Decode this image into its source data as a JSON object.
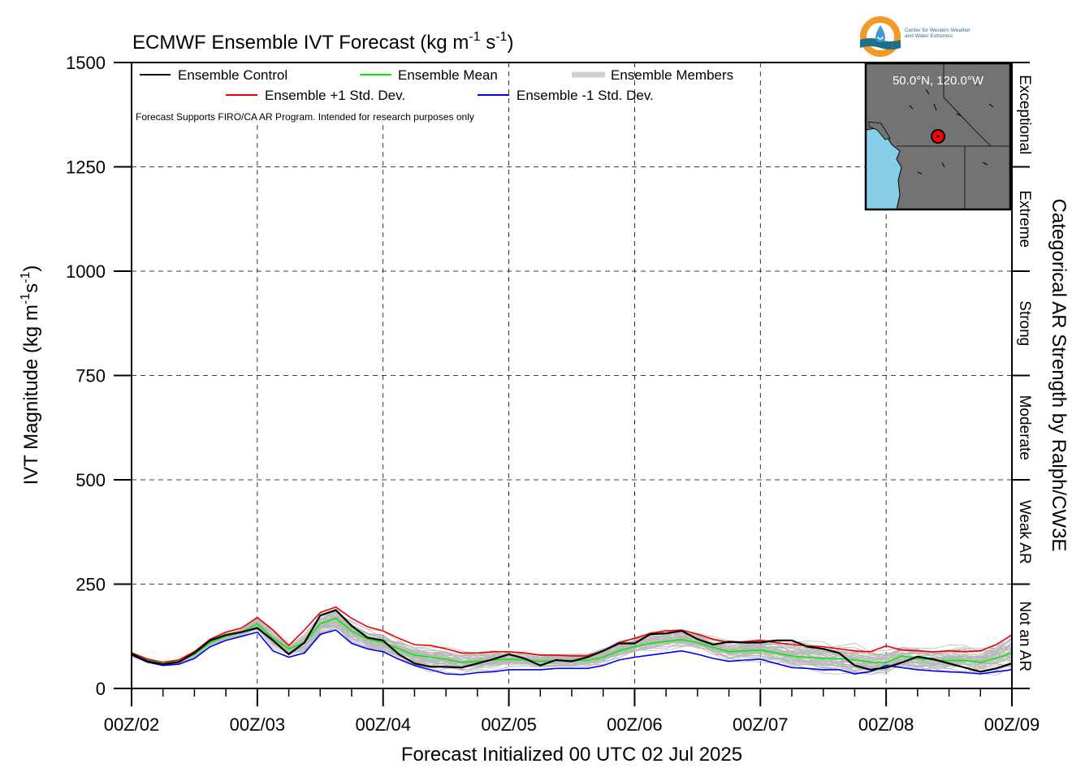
{
  "chart_data": {
    "type": "line",
    "title_main": "ECMWF Ensemble IVT Forecast (kg m",
    "title_exp1": "-1",
    "title_mid": " s",
    "title_exp2": "-1",
    "title_end": ")",
    "ylabel_main": "IVT Magnitude (kg m",
    "ylabel_exp1": "-1",
    "ylabel_mid": "s",
    "ylabel_exp2": "-1",
    "ylabel_end": ")",
    "xlabel": "Forecast Initialized 00 UTC 02 Jul 2025",
    "right_label": "Categorical AR Strength by Ralph/CW3E",
    "note": "Forecast Supports FIRO/CA AR Program. Intended for research purposes only",
    "ylim": [
      0,
      1500
    ],
    "yticks": [
      0,
      250,
      500,
      750,
      1000,
      1250,
      1500
    ],
    "xlim": [
      0,
      168
    ],
    "xticks": [
      0,
      24,
      48,
      72,
      96,
      120,
      144,
      168
    ],
    "xticklabels": [
      "00Z/02",
      "00Z/03",
      "00Z/04",
      "00Z/05",
      "00Z/06",
      "00Z/07",
      "00Z/08",
      "00Z/09"
    ],
    "grid": true,
    "legend_location": "top-left",
    "legend": [
      {
        "label": "Ensemble Control",
        "color": "#000000"
      },
      {
        "label": "Ensemble Mean",
        "color": "#00ee00"
      },
      {
        "label": "Ensemble Members",
        "color": "#c0c0c0"
      },
      {
        "label": "Ensemble +1 Std. Dev.",
        "color": "#ee0000"
      },
      {
        "label": "Ensemble -1 Std. Dev.",
        "color": "#0000ee"
      }
    ],
    "categories": [
      {
        "label": "Not an AR",
        "range": [
          0,
          250
        ]
      },
      {
        "label": "Weak AR",
        "range": [
          250,
          500
        ]
      },
      {
        "label": "Moderate",
        "range": [
          500,
          750
        ]
      },
      {
        "label": "Strong",
        "range": [
          750,
          1000
        ]
      },
      {
        "label": "Extreme",
        "range": [
          1000,
          1250
        ]
      },
      {
        "label": "Exceptional",
        "range": [
          1250,
          1500
        ]
      }
    ],
    "inset": {
      "label": "50.0°N, 120.0°W",
      "land_color": "#737373",
      "water_color": "#87ceeb",
      "marker_color": "#ff0000"
    },
    "x": [
      0,
      3,
      6,
      9,
      12,
      15,
      18,
      21,
      24,
      27,
      30,
      33,
      36,
      39,
      42,
      45,
      48,
      51,
      54,
      57,
      60,
      63,
      66,
      69,
      72,
      75,
      78,
      81,
      84,
      87,
      90,
      93,
      96,
      99,
      102,
      105,
      108,
      111,
      114,
      117,
      120,
      123,
      126,
      129,
      132,
      135,
      138,
      141,
      144,
      147,
      150,
      153,
      156,
      159,
      162,
      165,
      168
    ],
    "series": [
      {
        "name": "Ensemble Control",
        "color": "#000000",
        "values": [
          83,
          65,
          58,
          63,
          85,
          115,
          128,
          135,
          145,
          115,
          82,
          110,
          175,
          188,
          150,
          122,
          115,
          82,
          60,
          52,
          52,
          50,
          60,
          70,
          82,
          72,
          55,
          68,
          65,
          75,
          90,
          108,
          108,
          130,
          132,
          138,
          118,
          105,
          112,
          110,
          110,
          115,
          115,
          100,
          95,
          85,
          55,
          45,
          50,
          62,
          76,
          70,
          60,
          50,
          40,
          48,
          60
        ]
      },
      {
        "name": "Ensemble Mean",
        "color": "#00ee00",
        "values": [
          82,
          67,
          60,
          64,
          82,
          110,
          125,
          135,
          155,
          120,
          95,
          110,
          155,
          168,
          138,
          118,
          110,
          95,
          80,
          75,
          70,
          62,
          65,
          68,
          70,
          68,
          65,
          67,
          67,
          67,
          75,
          90,
          100,
          108,
          113,
          117,
          110,
          98,
          88,
          90,
          92,
          85,
          78,
          75,
          72,
          72,
          68,
          63,
          62,
          78,
          72,
          68,
          67,
          67,
          62,
          72,
          85
        ]
      },
      {
        "name": "Ensemble +1 Std. Dev.",
        "color": "#ee0000",
        "values": [
          85,
          70,
          62,
          68,
          88,
          118,
          135,
          145,
          170,
          140,
          103,
          140,
          182,
          195,
          168,
          148,
          138,
          120,
          105,
          103,
          95,
          85,
          85,
          88,
          88,
          85,
          80,
          80,
          78,
          78,
          90,
          110,
          120,
          132,
          138,
          140,
          130,
          118,
          110,
          112,
          115,
          110,
          105,
          102,
          100,
          95,
          90,
          88,
          102,
          92,
          90,
          88,
          90,
          88,
          90,
          105,
          128
        ]
      },
      {
        "name": "Ensemble -1 Std. Dev.",
        "color": "#0000ee",
        "values": [
          80,
          63,
          55,
          58,
          72,
          100,
          115,
          125,
          135,
          90,
          75,
          85,
          130,
          140,
          108,
          95,
          88,
          70,
          55,
          45,
          35,
          33,
          38,
          40,
          45,
          45,
          45,
          48,
          48,
          48,
          55,
          68,
          75,
          80,
          85,
          90,
          82,
          72,
          65,
          68,
          70,
          60,
          50,
          48,
          45,
          45,
          35,
          40,
          55,
          50,
          45,
          42,
          40,
          38,
          35,
          40,
          45
        ]
      }
    ]
  }
}
